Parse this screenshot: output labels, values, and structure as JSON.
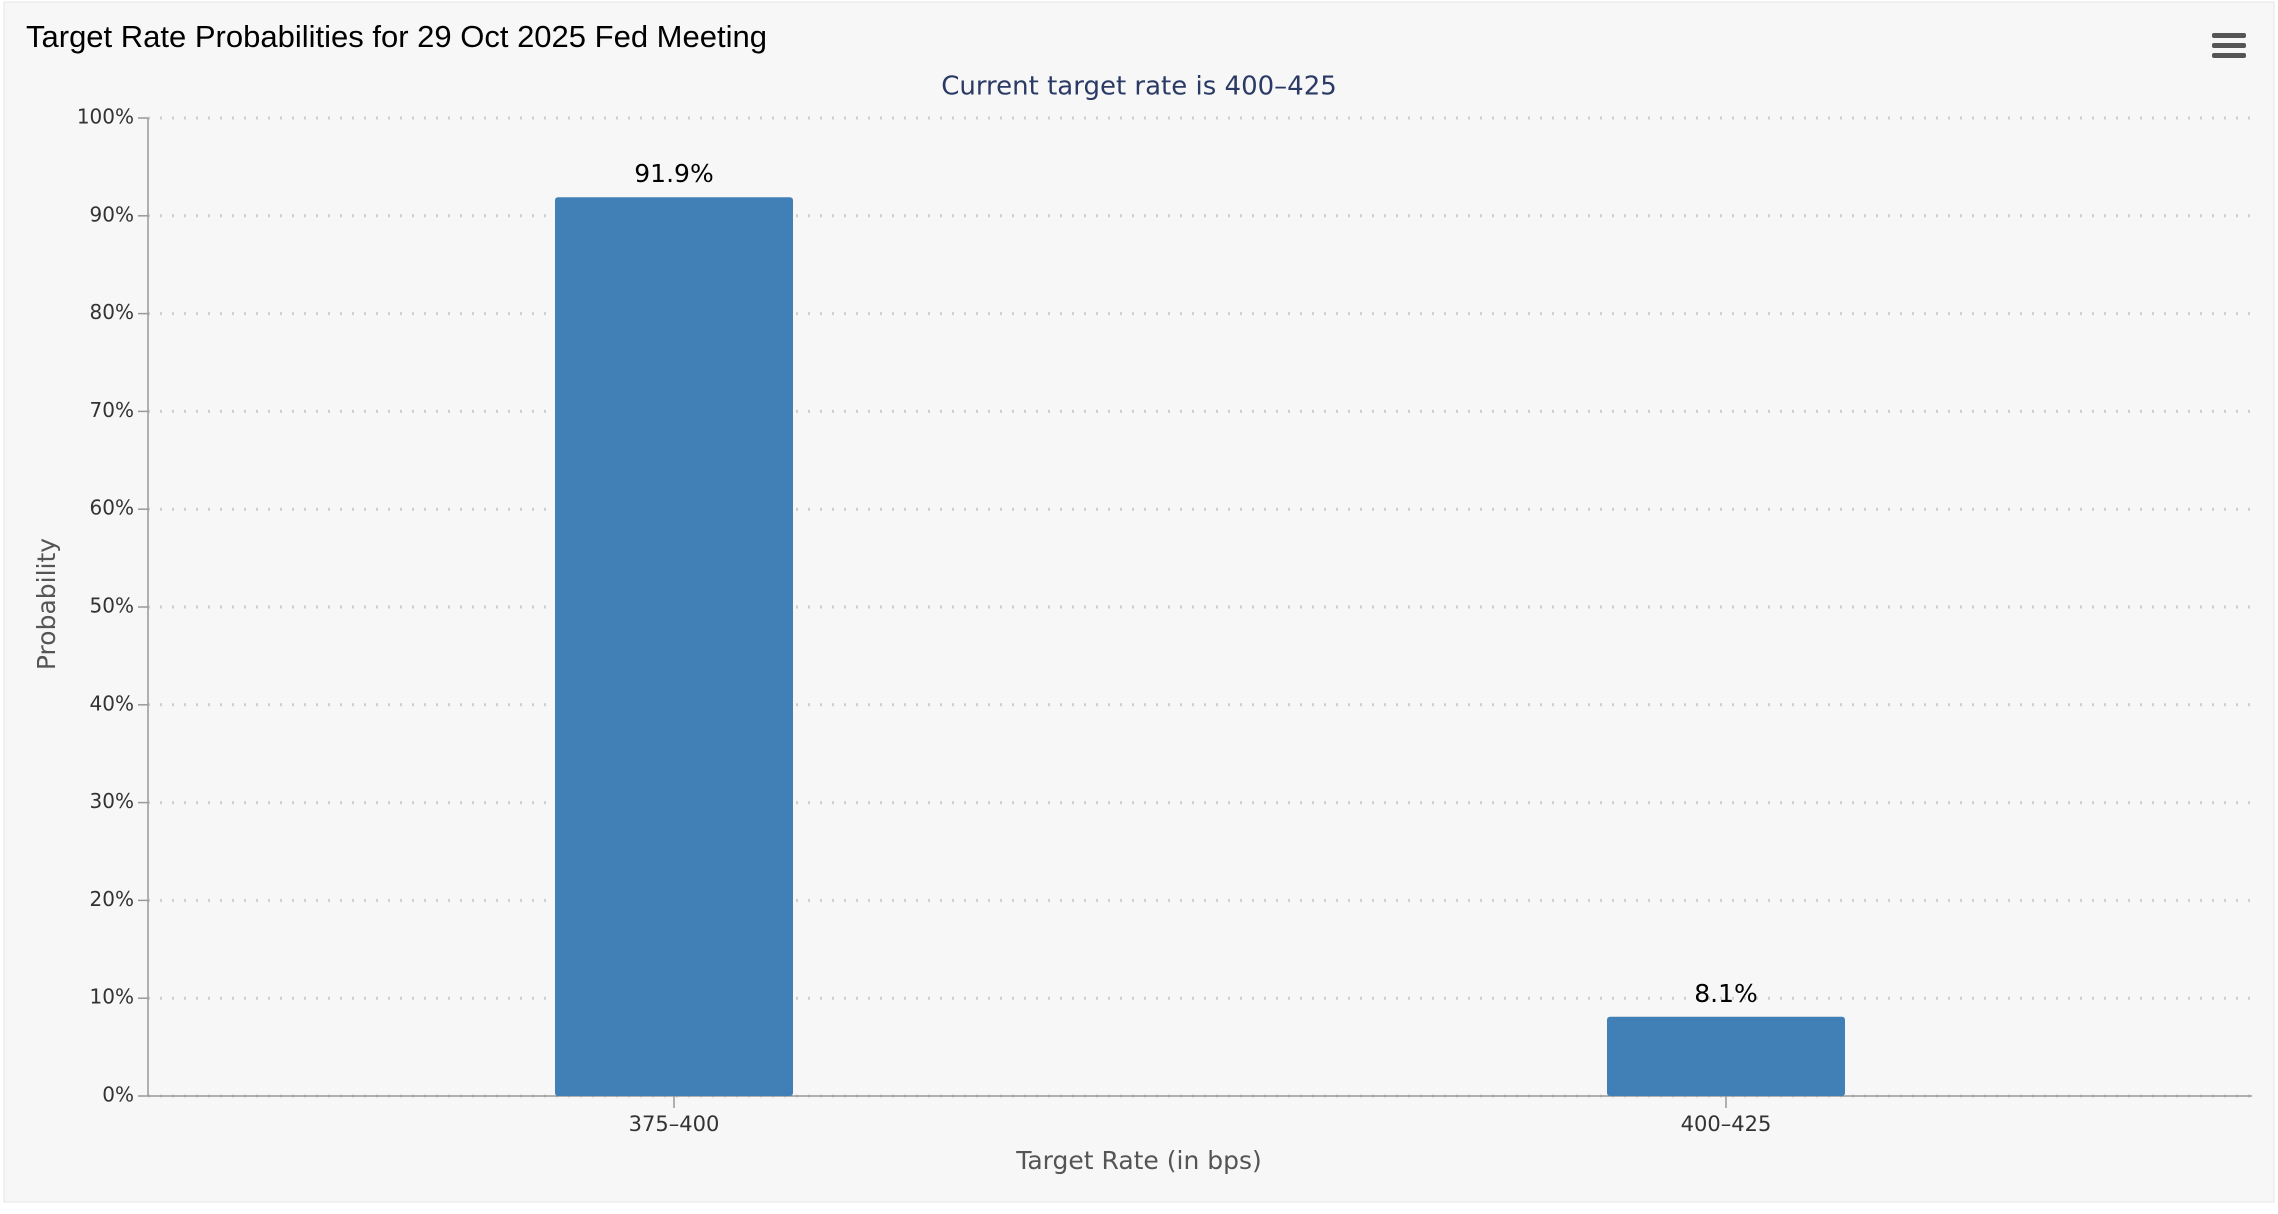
{
  "chart_data": {
    "type": "bar",
    "title": "Target Rate Probabilities for 29 Oct 2025 Fed Meeting",
    "subtitle": "Current target rate is 400–425",
    "x_label": "Target Rate (in bps)",
    "y_label": "Probability",
    "categories": [
      "375–400",
      "400–425"
    ],
    "values": [
      91.9,
      8.1
    ],
    "value_labels": [
      "91.9%",
      "8.1%"
    ],
    "color": "#4180b6",
    "ylim": [
      0,
      100
    ],
    "yticks": [
      {
        "value": 0,
        "label": "0%"
      },
      {
        "value": 10,
        "label": "10%"
      },
      {
        "value": 20,
        "label": "20%"
      },
      {
        "value": 30,
        "label": "30%"
      },
      {
        "value": 40,
        "label": "40%"
      },
      {
        "value": 50,
        "label": "50%"
      },
      {
        "value": 60,
        "label": "60%"
      },
      {
        "value": 70,
        "label": "70%"
      },
      {
        "value": 80,
        "label": "80%"
      },
      {
        "value": 90,
        "label": "90%"
      },
      {
        "value": 100,
        "label": "100%"
      }
    ],
    "grid": true
  }
}
